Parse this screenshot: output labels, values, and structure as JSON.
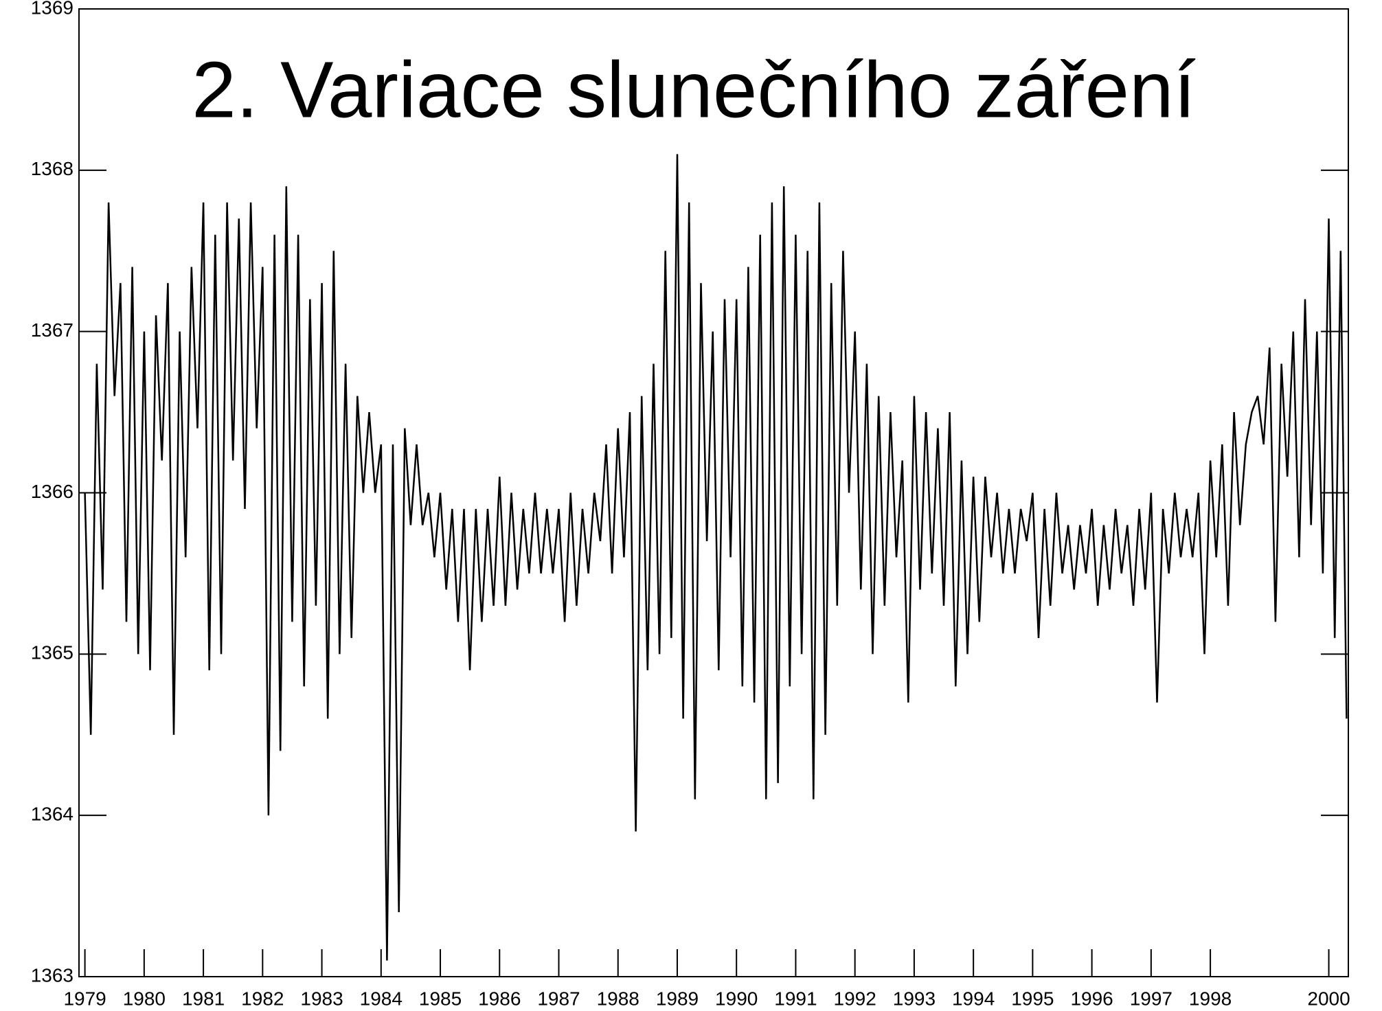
{
  "chart_data": {
    "type": "line",
    "title": "2. Variace slunečního záření",
    "x": [
      1979.0,
      1979.1,
      1979.2,
      1979.3,
      1979.4,
      1979.5,
      1979.6,
      1979.7,
      1979.8,
      1979.9,
      1980.0,
      1980.1,
      1980.2,
      1980.3,
      1980.4,
      1980.5,
      1980.6,
      1980.7,
      1980.8,
      1980.9,
      1981.0,
      1981.1,
      1981.2,
      1981.3,
      1981.4,
      1981.5,
      1981.6,
      1981.7,
      1981.8,
      1981.9,
      1982.0,
      1982.1,
      1982.2,
      1982.3,
      1982.4,
      1982.5,
      1982.6,
      1982.7,
      1982.8,
      1982.9,
      1983.0,
      1983.1,
      1983.2,
      1983.3,
      1983.4,
      1983.5,
      1983.6,
      1983.7,
      1983.8,
      1983.9,
      1984.0,
      1984.1,
      1984.2,
      1984.3,
      1984.4,
      1984.5,
      1984.6,
      1984.7,
      1984.8,
      1984.9,
      1985.0,
      1985.1,
      1985.2,
      1985.3,
      1985.4,
      1985.5,
      1985.6,
      1985.7,
      1985.8,
      1985.9,
      1986.0,
      1986.1,
      1986.2,
      1986.3,
      1986.4,
      1986.5,
      1986.6,
      1986.7,
      1986.8,
      1986.9,
      1987.0,
      1987.1,
      1987.2,
      1987.3,
      1987.4,
      1987.5,
      1987.6,
      1987.7,
      1987.8,
      1987.9,
      1988.0,
      1988.1,
      1988.2,
      1988.3,
      1988.4,
      1988.5,
      1988.6,
      1988.7,
      1988.8,
      1988.9,
      1989.0,
      1989.1,
      1989.2,
      1989.3,
      1989.4,
      1989.5,
      1989.6,
      1989.7,
      1989.8,
      1989.9,
      1990.0,
      1990.1,
      1990.2,
      1990.3,
      1990.4,
      1990.5,
      1990.6,
      1990.7,
      1990.8,
      1990.9,
      1991.0,
      1991.1,
      1991.2,
      1991.3,
      1991.4,
      1991.5,
      1991.6,
      1991.7,
      1991.8,
      1991.9,
      1992.0,
      1992.1,
      1992.2,
      1992.3,
      1992.4,
      1992.5,
      1992.6,
      1992.7,
      1992.8,
      1992.9,
      1993.0,
      1993.1,
      1993.2,
      1993.3,
      1993.4,
      1993.5,
      1993.6,
      1993.7,
      1993.8,
      1993.9,
      1994.0,
      1994.1,
      1994.2,
      1994.3,
      1994.4,
      1994.5,
      1994.6,
      1994.7,
      1994.8,
      1994.9,
      1995.0,
      1995.1,
      1995.2,
      1995.3,
      1995.4,
      1995.5,
      1995.6,
      1995.7,
      1995.8,
      1995.9,
      1996.0,
      1996.1,
      1996.2,
      1996.3,
      1996.4,
      1996.5,
      1996.6,
      1996.7,
      1996.8,
      1996.9,
      1997.0,
      1997.1,
      1997.2,
      1997.3,
      1997.4,
      1997.5,
      1997.6,
      1997.7,
      1997.8,
      1997.9,
      1998.0,
      1998.1,
      1998.2,
      1998.3,
      1998.4,
      1998.5,
      1998.6,
      1998.7,
      1998.8,
      1998.9,
      1999.0,
      1999.1,
      1999.2,
      1999.3,
      1999.4,
      1999.5,
      1999.6,
      1999.7,
      1999.8,
      1999.9,
      2000.0,
      2000.1,
      2000.2,
      2000.3
    ],
    "values": [
      1366.0,
      1364.5,
      1366.8,
      1365.4,
      1367.8,
      1366.6,
      1367.3,
      1365.2,
      1367.4,
      1365.0,
      1367.0,
      1364.9,
      1367.1,
      1366.2,
      1367.3,
      1364.5,
      1367.0,
      1365.6,
      1367.4,
      1366.4,
      1367.8,
      1364.9,
      1367.6,
      1365.0,
      1367.8,
      1366.2,
      1367.7,
      1365.9,
      1367.8,
      1366.4,
      1367.4,
      1364.0,
      1367.6,
      1364.4,
      1367.9,
      1365.2,
      1367.6,
      1364.8,
      1367.2,
      1365.3,
      1367.3,
      1364.6,
      1367.5,
      1365.0,
      1366.8,
      1365.1,
      1366.6,
      1366.0,
      1366.5,
      1366.0,
      1366.3,
      1363.1,
      1366.3,
      1363.4,
      1366.4,
      1365.8,
      1366.3,
      1365.8,
      1366.0,
      1365.6,
      1366.0,
      1365.4,
      1365.9,
      1365.2,
      1365.9,
      1364.9,
      1365.9,
      1365.2,
      1365.9,
      1365.3,
      1366.1,
      1365.3,
      1366.0,
      1365.4,
      1365.9,
      1365.5,
      1366.0,
      1365.5,
      1365.9,
      1365.5,
      1365.9,
      1365.2,
      1366.0,
      1365.3,
      1365.9,
      1365.5,
      1366.0,
      1365.7,
      1366.3,
      1365.5,
      1366.4,
      1365.6,
      1366.5,
      1363.9,
      1366.6,
      1364.9,
      1366.8,
      1365.0,
      1367.5,
      1365.1,
      1368.1,
      1364.6,
      1367.8,
      1364.1,
      1367.3,
      1365.7,
      1367.0,
      1364.9,
      1367.2,
      1365.6,
      1367.2,
      1364.8,
      1367.4,
      1364.7,
      1367.6,
      1364.1,
      1367.8,
      1364.2,
      1367.9,
      1364.8,
      1367.6,
      1365.0,
      1367.5,
      1364.1,
      1367.8,
      1364.5,
      1367.3,
      1365.3,
      1367.5,
      1366.0,
      1367.0,
      1365.4,
      1366.8,
      1365.0,
      1366.6,
      1365.3,
      1366.5,
      1365.6,
      1366.2,
      1364.7,
      1366.6,
      1365.4,
      1366.5,
      1365.5,
      1366.4,
      1365.3,
      1366.5,
      1364.8,
      1366.2,
      1365.0,
      1366.1,
      1365.2,
      1366.1,
      1365.6,
      1366.0,
      1365.5,
      1365.9,
      1365.5,
      1365.9,
      1365.7,
      1366.0,
      1365.1,
      1365.9,
      1365.3,
      1366.0,
      1365.5,
      1365.8,
      1365.4,
      1365.8,
      1365.5,
      1365.9,
      1365.3,
      1365.8,
      1365.4,
      1365.9,
      1365.5,
      1365.8,
      1365.3,
      1365.9,
      1365.4,
      1366.0,
      1364.7,
      1365.9,
      1365.5,
      1366.0,
      1365.6,
      1365.9,
      1365.6,
      1366.0,
      1365.0,
      1366.2,
      1365.6,
      1366.3,
      1365.3,
      1366.5,
      1365.8,
      1366.3,
      1366.5,
      1366.6,
      1366.3,
      1366.9,
      1365.2,
      1366.8,
      1366.1,
      1367.0,
      1365.6,
      1367.2,
      1365.8,
      1367.0,
      1365.5,
      1367.7,
      1365.1,
      1367.5,
      1364.6
    ],
    "color": "#000000",
    "xlim": [
      1978.9,
      2000.33
    ],
    "xticks": [
      1979,
      1980,
      1981,
      1982,
      1983,
      1984,
      1985,
      1986,
      1987,
      1988,
      1989,
      1990,
      1991,
      1992,
      1993,
      1994,
      1995,
      1996,
      1997,
      1998,
      2000
    ],
    "ylim": [
      1363,
      1369
    ],
    "yticks": [
      1363,
      1364,
      1365,
      1366,
      1367,
      1368,
      1369
    ]
  }
}
